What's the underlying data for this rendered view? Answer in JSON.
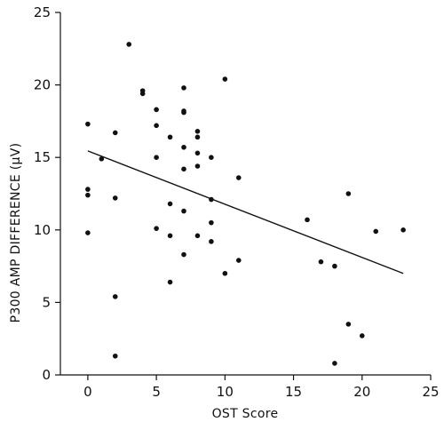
{
  "chart_data": {
    "type": "scatter",
    "title": "",
    "xlabel": "OST Score",
    "ylabel": "P300 AMP DIFFERENCE (μV)",
    "xlim": [
      -2,
      25
    ],
    "ylim": [
      0,
      25
    ],
    "xticks": [
      0,
      5,
      10,
      15,
      20,
      25
    ],
    "yticks": [
      0,
      5,
      10,
      15,
      20,
      25
    ],
    "xtick_labels": [
      "0",
      "5",
      "10",
      "15",
      "20",
      "25"
    ],
    "ytick_labels": [
      "0",
      "5",
      "10",
      "15",
      "20",
      "25"
    ],
    "grid": false,
    "legend": "none",
    "points": [
      {
        "x": 0,
        "y": 17.3
      },
      {
        "x": 0,
        "y": 12.8
      },
      {
        "x": 0,
        "y": 12.4
      },
      {
        "x": 0,
        "y": 9.8
      },
      {
        "x": 1,
        "y": 14.9
      },
      {
        "x": 2,
        "y": 16.7
      },
      {
        "x": 2,
        "y": 12.2
      },
      {
        "x": 2,
        "y": 5.4
      },
      {
        "x": 2,
        "y": 1.3
      },
      {
        "x": 3,
        "y": 22.8
      },
      {
        "x": 4,
        "y": 19.6
      },
      {
        "x": 4,
        "y": 19.4
      },
      {
        "x": 5,
        "y": 18.3
      },
      {
        "x": 5,
        "y": 17.2
      },
      {
        "x": 5,
        "y": 15.0
      },
      {
        "x": 5,
        "y": 10.1
      },
      {
        "x": 6,
        "y": 16.4
      },
      {
        "x": 6,
        "y": 11.8
      },
      {
        "x": 6,
        "y": 9.6
      },
      {
        "x": 6,
        "y": 6.4
      },
      {
        "x": 7,
        "y": 19.8
      },
      {
        "x": 7,
        "y": 18.2
      },
      {
        "x": 7,
        "y": 18.1
      },
      {
        "x": 7,
        "y": 15.7
      },
      {
        "x": 7,
        "y": 14.2
      },
      {
        "x": 7,
        "y": 11.3
      },
      {
        "x": 7,
        "y": 8.3
      },
      {
        "x": 8,
        "y": 16.8
      },
      {
        "x": 8,
        "y": 16.4
      },
      {
        "x": 8,
        "y": 15.3
      },
      {
        "x": 8,
        "y": 14.4
      },
      {
        "x": 8,
        "y": 9.6
      },
      {
        "x": 9,
        "y": 15.0
      },
      {
        "x": 9,
        "y": 12.1
      },
      {
        "x": 9,
        "y": 10.5
      },
      {
        "x": 9,
        "y": 9.2
      },
      {
        "x": 10,
        "y": 20.4
      },
      {
        "x": 10,
        "y": 7.0
      },
      {
        "x": 11,
        "y": 13.6
      },
      {
        "x": 11,
        "y": 7.9
      },
      {
        "x": 16,
        "y": 10.7
      },
      {
        "x": 17,
        "y": 7.8
      },
      {
        "x": 18,
        "y": 7.5
      },
      {
        "x": 18,
        "y": 0.8
      },
      {
        "x": 19,
        "y": 12.5
      },
      {
        "x": 19,
        "y": 3.5
      },
      {
        "x": 20,
        "y": 2.7
      },
      {
        "x": 21,
        "y": 9.9
      },
      {
        "x": 23,
        "y": 10.0
      }
    ],
    "trendline": {
      "x": [
        0,
        23
      ],
      "y": [
        15.45,
        7.0
      ]
    }
  }
}
